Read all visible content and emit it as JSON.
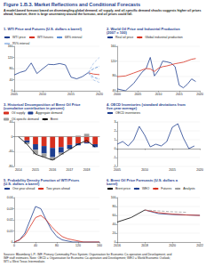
{
  "title": "Figure 1.B.3. Market Reflections and Conditional Forecasts",
  "subtitle": "A model-based forecast based on disentangling global demand, oil supply, and oil-specific demand shocks suggests higher oil prices ahead; however, there is large uncertainty around the forecast, and oil prices could fall.",
  "sources": "Sources: Bloomberg L.P.; IMF, Primary Commodity Price System; Organisation for Economic Co-operation and Development; and IMF staff estimates. Note: OECD = Organisation for Economic Co-operation and Development; WEO = World Economic Outlook; WTI = West Texas Intermediate.",
  "chart_data": [
    {
      "type": "line",
      "title": "1. WTI Price and Futures (U.S. dollars a barrel)",
      "xlim": [
        2005,
        2020
      ],
      "xticks": [
        2005,
        2010,
        2015,
        2020
      ],
      "ylim": [
        0,
        160
      ],
      "yticks": [
        0,
        40,
        80,
        120,
        160
      ],
      "grid": true,
      "legend": "top",
      "series": [
        {
          "name": "WTI price",
          "color": "#1f3f8f",
          "x": [
            2005,
            2006,
            2007,
            2008,
            2009,
            2010,
            2011,
            2012,
            2013,
            2014,
            2015,
            2016,
            2017,
            2018
          ],
          "values": [
            57,
            66,
            72,
            100,
            62,
            79,
            95,
            94,
            98,
            93,
            49,
            43,
            51,
            65
          ]
        },
        {
          "name": "WTI futures",
          "color": "#d7301f",
          "x": [
            2018,
            2019,
            2020
          ],
          "values": [
            65,
            60,
            58
          ]
        },
        {
          "name": "68% interval",
          "color": "#5b8fd6",
          "line_style": "dashed",
          "x": [
            2018,
            2019,
            2020
          ],
          "values": [
            65,
            80,
            88
          ]
        },
        {
          "name": "68% interval",
          "color": "#5b8fd6",
          "line_style": "dashed",
          "x": [
            2018,
            2019,
            2020
          ],
          "values": [
            65,
            48,
            42
          ]
        },
        {
          "name": "95% interval",
          "color": "#a9c4ea",
          "line_style": "dashed",
          "x": [
            2018,
            2019,
            2020
          ],
          "values": [
            65,
            100,
            120
          ]
        },
        {
          "name": "95% interval",
          "color": "#a9c4ea",
          "line_style": "dashed",
          "x": [
            2018,
            2019,
            2020
          ],
          "values": [
            65,
            38,
            30
          ]
        }
      ]
    },
    {
      "type": "line",
      "title": "2. World Oil Price and Industrial Production (2007 = 100)",
      "xlim": [
        2000,
        2020
      ],
      "xticks": [
        2000,
        2005,
        2010,
        2015,
        2020
      ],
      "ylim": [
        40,
        160
      ],
      "yticks": [
        40,
        80,
        120,
        160
      ],
      "grid": true,
      "legend": "top",
      "series": [
        {
          "name": "Real oil price",
          "color": "#1f3f8f",
          "x": [
            2000,
            2002,
            2004,
            2006,
            2007,
            2008,
            2009,
            2010,
            2011,
            2012,
            2013,
            2014,
            2015,
            2016,
            2017,
            2018,
            2019
          ],
          "values": [
            45,
            40,
            60,
            90,
            100,
            130,
            80,
            95,
            120,
            118,
            115,
            105,
            55,
            48,
            58,
            72,
            65
          ]
        },
        {
          "name": "Global industrial production",
          "color": "#d7301f",
          "x": [
            2000,
            2002,
            2004,
            2006,
            2007,
            2008,
            2009,
            2010,
            2011,
            2012,
            2013,
            2014,
            2015,
            2016,
            2017,
            2018,
            2019
          ],
          "values": [
            78,
            80,
            88,
            96,
            100,
            99,
            92,
            101,
            105,
            107,
            110,
            113,
            115,
            117,
            121,
            125,
            127
          ]
        }
      ]
    },
    {
      "type": "bar",
      "stacked": true,
      "title": "3. Historical Decomposition of Brent Oil Price (cumulative contribution in percent)",
      "categories": [
        "2014",
        null,
        "2015",
        null,
        "2016",
        null,
        "2017",
        null,
        "2018",
        null
      ],
      "ylim": [
        -80,
        40
      ],
      "yticks": [
        -80,
        -40,
        0,
        40
      ],
      "grid": true,
      "legend": "top",
      "series": [
        {
          "name": "Oil supply",
          "color": "#d7301f",
          "values": [
            0,
            -10,
            -20,
            -25,
            -30,
            -28,
            -22,
            -18,
            -15,
            -20
          ]
        },
        {
          "name": "Aggregate demand",
          "color": "#1f3f8f",
          "values": [
            0,
            -5,
            -15,
            -20,
            -25,
            -15,
            -10,
            -5,
            -3,
            -8
          ]
        },
        {
          "name": "Oil-specific demand",
          "color": "#9e9e9e",
          "values": [
            0,
            -5,
            -12,
            -10,
            -8,
            -5,
            -2,
            3,
            8,
            0
          ]
        },
        {
          "name": "Brent",
          "type": "line",
          "color": "#000000",
          "values": [
            0,
            -20,
            -47,
            -55,
            -63,
            -48,
            -34,
            -20,
            -10,
            -28
          ]
        }
      ]
    },
    {
      "type": "line",
      "title": "4. OECD Inventories (standard deviations from five-year average)",
      "xlim": [
        2005,
        2020
      ],
      "xticks": [
        2005,
        2010,
        2015,
        2020
      ],
      "ylim": [
        -2,
        3
      ],
      "yticks": [
        -2,
        -1,
        0,
        1,
        2,
        3
      ],
      "grid": true,
      "legend": "top",
      "series": [
        {
          "name": "OECD inventories",
          "color": "#1f3f8f",
          "x": [
            2005,
            2006,
            2007,
            2008,
            2009,
            2010,
            2011,
            2012,
            2013,
            2014,
            2015,
            2016,
            2017,
            2018,
            2019
          ],
          "values": [
            0.5,
            0.8,
            0.3,
            1.0,
            2.5,
            1.5,
            0.2,
            0.5,
            0.3,
            0.8,
            2.4,
            2.8,
            1.2,
            0.0,
            0.3
          ]
        }
      ]
    },
    {
      "type": "line",
      "title": "5. Probability Density Function of WTI Prices (U.S. dollars a barrel)",
      "xlim": [
        0,
        160
      ],
      "xticks": [
        0,
        40,
        80,
        120,
        160
      ],
      "ylim": [
        0,
        0.04
      ],
      "yticks": [
        0,
        0.01,
        0.02,
        0.03,
        0.04
      ],
      "grid": true,
      "legend": "top",
      "series": [
        {
          "name": "One year ahead",
          "color": "#1f3f8f",
          "x": [
            0,
            10,
            20,
            30,
            40,
            50,
            60,
            70,
            80,
            90,
            100,
            110,
            120,
            130,
            140,
            150,
            160
          ],
          "values": [
            0,
            0.002,
            0.008,
            0.02,
            0.032,
            0.03,
            0.02,
            0.011,
            0.005,
            0.002,
            0.001,
            0,
            0,
            0,
            0,
            0,
            0
          ]
        },
        {
          "name": "Two years ahead",
          "color": "#d7301f",
          "x": [
            0,
            10,
            20,
            30,
            40,
            50,
            60,
            70,
            80,
            90,
            100,
            110,
            120,
            130,
            140,
            150,
            160
          ],
          "values": [
            0,
            0.002,
            0.006,
            0.014,
            0.022,
            0.024,
            0.02,
            0.014,
            0.009,
            0.005,
            0.003,
            0.002,
            0.001,
            0,
            0,
            0,
            0
          ]
        }
      ]
    },
    {
      "type": "line",
      "title": "6. Brent Oil Price Forecasts (U.S. dollars a barrel)",
      "xlim": [
        2016,
        2022
      ],
      "xticks": [
        2016,
        2018,
        2020,
        2022
      ],
      "ylim": [
        0,
        100
      ],
      "yticks": [
        0,
        20,
        40,
        60,
        80,
        100
      ],
      "grid": true,
      "legend": "top",
      "series": [
        {
          "name": "Brent price",
          "color": "#000000",
          "x": [
            2016,
            2017,
            2018
          ],
          "values": [
            45,
            55,
            72
          ]
        },
        {
          "name": "WEO",
          "color": "#1f3f8f",
          "x": [
            2018,
            2019,
            2020,
            2021,
            2022
          ],
          "values": [
            72,
            64,
            62,
            61,
            60
          ]
        },
        {
          "name": "Futures",
          "color": "#d7301f",
          "x": [
            2018,
            2019,
            2020,
            2021,
            2022
          ],
          "values": [
            72,
            66,
            63,
            61,
            60
          ]
        },
        {
          "name": "Analysts",
          "color": "#9e9e9e",
          "line_style": "dashed",
          "x": [
            2018,
            2019,
            2020,
            2021
          ],
          "values": [
            72,
            70,
            68,
            67
          ]
        }
      ]
    }
  ]
}
